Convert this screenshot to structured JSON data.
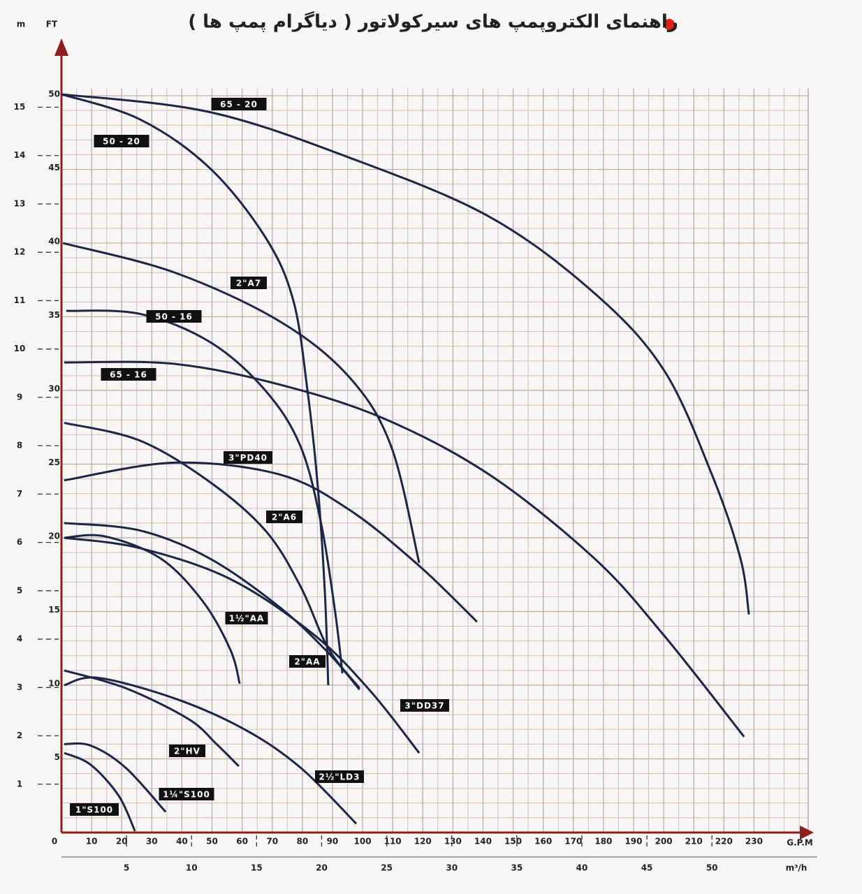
{
  "chart_data": {
    "type": "line",
    "title": "راهنمای الکتروپمپ های سیرکولاتور ( دیاگرام پمپ ها )",
    "x_label": "G.P.M",
    "x2_label": "m³/h",
    "y_label": "FT",
    "y2_label": "m",
    "xlim": [
      0,
      248
    ],
    "xticks": [
      0,
      10,
      20,
      30,
      40,
      50,
      60,
      70,
      80,
      90,
      100,
      110,
      120,
      130,
      140,
      150,
      160,
      170,
      180,
      190,
      200,
      210,
      220,
      230
    ],
    "x2lim": [
      0,
      57.4
    ],
    "x2ticks": [
      5,
      10,
      15,
      20,
      25,
      30,
      35,
      40,
      45,
      50
    ],
    "ylim": [
      0,
      50.5
    ],
    "yticks": [
      5,
      10,
      15,
      20,
      25,
      30,
      35,
      40,
      45,
      50
    ],
    "y2lim": [
      0,
      15.39
    ],
    "y2ticks": [
      1,
      2,
      3,
      4,
      5,
      6,
      7,
      8,
      9,
      10,
      11,
      12,
      13,
      14,
      15
    ],
    "grid": true,
    "color": "#1d2545",
    "axis_color": "#8e1f1f",
    "series": [
      {
        "name": "65 - 20",
        "x": [
          0,
          49,
          95.6,
          142,
          177,
          200,
          216,
          225.5,
          228.3
        ],
        "values": [
          50.1,
          48.9,
          45.8,
          41.8,
          36.6,
          31.4,
          24.3,
          18.6,
          14.8
        ]
      },
      {
        "name": "50 - 20",
        "x": [
          0,
          26,
          49.2,
          67.7,
          77,
          81.7,
          85.2,
          87.5,
          88.6
        ],
        "values": [
          50.1,
          48.4,
          45.1,
          40.4,
          36.1,
          30,
          23.3,
          16.2,
          10
        ]
      },
      {
        "name": "2\"A7",
        "x": [
          0.5,
          37.6,
          72.4,
          95.6,
          109.5,
          118.8
        ],
        "values": [
          40,
          38,
          34.7,
          30.9,
          26.2,
          18.3
        ]
      },
      {
        "name": "50 - 16",
        "x": [
          1.6,
          26,
          49.2,
          67.7,
          79.4,
          86.3,
          91,
          93.3
        ],
        "values": [
          35.4,
          35.2,
          33.3,
          30,
          26.2,
          20.9,
          14.8,
          10.8
        ]
      },
      {
        "name": "65 - 16",
        "x": [
          0.9,
          37.6,
          72.4,
          107,
          142,
          177,
          200,
          226.7
        ],
        "values": [
          31.9,
          31.8,
          30.4,
          28.1,
          24.3,
          18.6,
          13.4,
          6.5
        ]
      },
      {
        "name": "3\"PD40",
        "x": [
          0.9,
          37.6,
          72.4,
          95.6,
          118.8,
          138
        ],
        "values": [
          23.9,
          25.1,
          24.3,
          21.9,
          18.1,
          14.3
        ]
      },
      {
        "name": "2\"A6",
        "x": [
          0.9,
          26,
          49.2,
          67.7,
          79.4,
          88.6,
          99
        ],
        "values": [
          27.8,
          26.6,
          23.8,
          20.5,
          16.7,
          12.5,
          9.8
        ]
      },
      {
        "name": "2\"AA",
        "x": [
          0.9,
          26,
          49.2,
          72.4,
          88.6,
          99
        ],
        "values": [
          21,
          20.5,
          18.6,
          15.3,
          12.2,
          9.7
        ]
      },
      {
        "name": "1½\"AA",
        "x": [
          0.9,
          14.4,
          32.9,
          46.9,
          56.1,
          59.2
        ],
        "values": [
          20,
          20.1,
          18.6,
          15.7,
          12.4,
          10.1
        ]
      },
      {
        "name": "3\"DD37",
        "x": [
          0.9,
          26,
          56.1,
          84,
          102.6,
          118.8
        ],
        "values": [
          20,
          19.3,
          17.2,
          13.4,
          9.6,
          5.4
        ]
      },
      {
        "name": "2\"HV",
        "x": [
          0.9,
          21.3,
          42.2,
          51.5,
          58.9
        ],
        "values": [
          11,
          9.8,
          7.7,
          6,
          4.5
        ]
      },
      {
        "name": "2½\"LD3",
        "x": [
          0.9,
          12.1,
          37.6,
          60.8,
          79.4,
          97.9
        ],
        "values": [
          10,
          10.5,
          9.1,
          7,
          4.4,
          0.6
        ]
      },
      {
        "name": "1¼\"S100",
        "x": [
          0.9,
          9.7,
          21.3,
          34.6
        ],
        "values": [
          6,
          5.9,
          4.4,
          1.4
        ]
      },
      {
        "name": "1\"S100",
        "x": [
          0.9,
          9.7,
          19,
          24.4
        ],
        "values": [
          5.4,
          4.6,
          2.5,
          0.1
        ]
      }
    ]
  }
}
